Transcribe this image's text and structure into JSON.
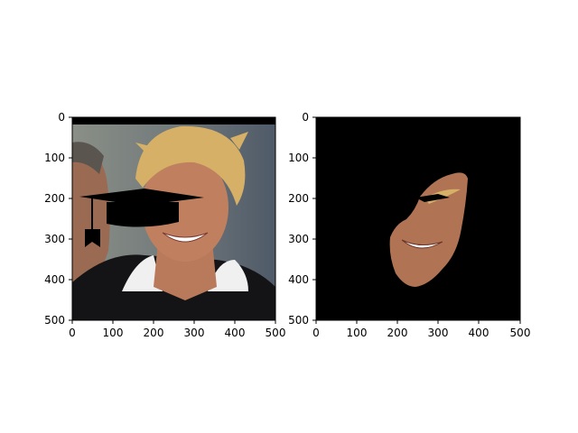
{
  "figure": {
    "panels": [
      {
        "id": "left",
        "content": "photo of a smiling blond man with a second person at the left edge, overlaid with a black graduation cap (mortarboard) icon",
        "x_ticks": [
          "0",
          "100",
          "200",
          "300",
          "400",
          "500"
        ],
        "y_ticks": [
          "0",
          "100",
          "200",
          "300",
          "400",
          "500"
        ],
        "xlim": [
          0,
          500
        ],
        "ylim": [
          500,
          0
        ]
      },
      {
        "id": "right",
        "content": "segmented face region on a black background with a sliver of the cap brim",
        "x_ticks": [
          "0",
          "100",
          "200",
          "300",
          "400",
          "500"
        ],
        "y_ticks": [
          "0",
          "100",
          "200",
          "300",
          "400",
          "500"
        ],
        "xlim": [
          0,
          500
        ],
        "ylim": [
          500,
          0
        ]
      }
    ]
  },
  "colors": {
    "axes": "#000000",
    "background_right": "#000000",
    "skin": "#b07454",
    "hair": "#d8b064",
    "cap": "#000000"
  },
  "icons": [
    "graduation-cap-icon"
  ]
}
